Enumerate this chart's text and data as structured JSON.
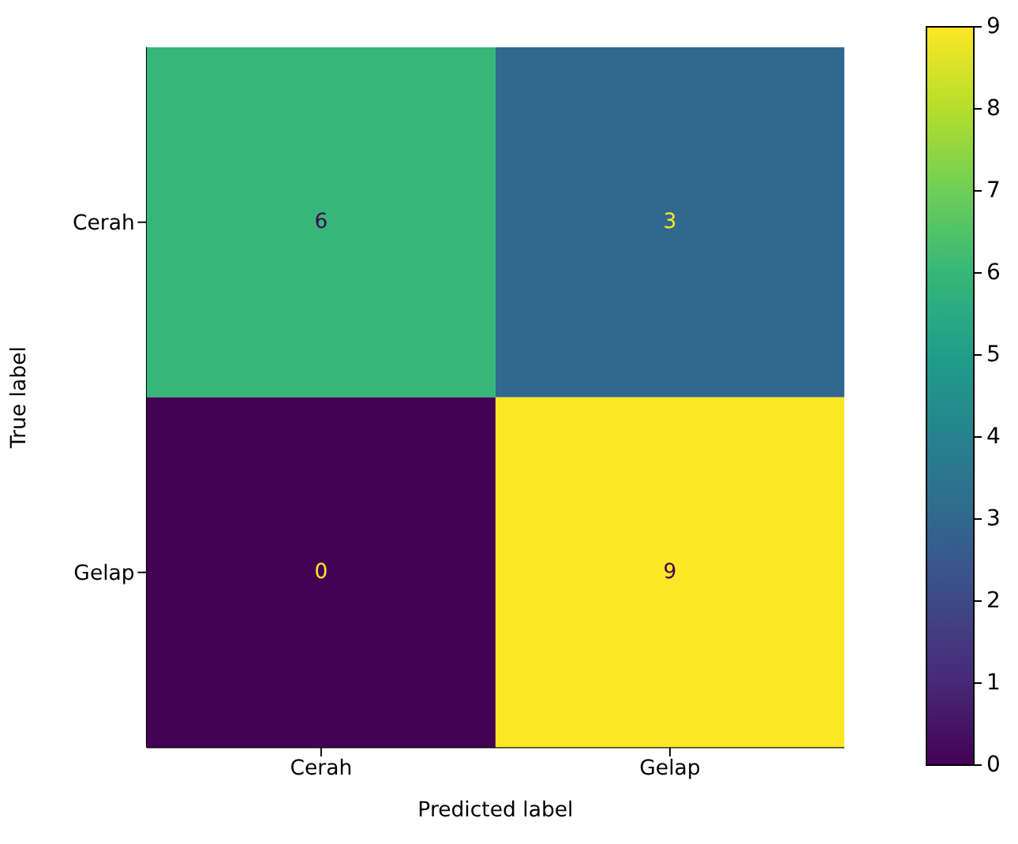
{
  "chart_data": {
    "type": "heatmap",
    "xlabel": "Predicted label",
    "ylabel": "True label",
    "categories": [
      "Cerah",
      "Gelap"
    ],
    "y_categories": [
      "Cerah",
      "Gelap"
    ],
    "cells": [
      [
        6,
        3
      ],
      [
        0,
        9
      ]
    ],
    "clim": [
      0,
      9
    ],
    "cticks": [
      0,
      1,
      2,
      3,
      4,
      5,
      6,
      7,
      8,
      9
    ],
    "data_labels": true
  }
}
